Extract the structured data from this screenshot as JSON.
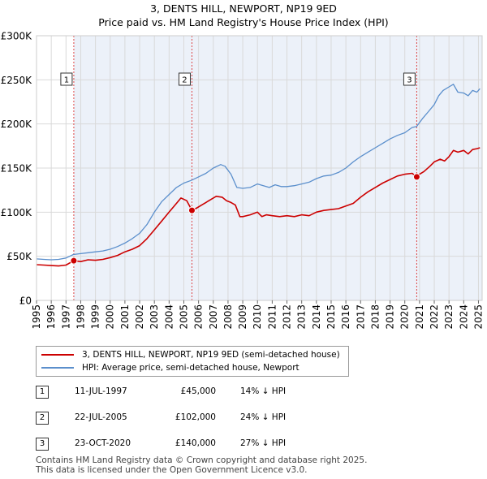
{
  "chart_data": {
    "type": "line",
    "title": "3, DENTS HILL, NEWPORT, NP19 9ED",
    "subtitle": "Price paid vs. HM Land Registry's House Price Index (HPI)",
    "xlabel": "",
    "ylabel": "",
    "xlim": [
      1995,
      2025.25
    ],
    "ylim": [
      0,
      300000
    ],
    "grid": true,
    "x_ticks": [
      "1995",
      "1996",
      "1997",
      "1998",
      "1999",
      "2000",
      "2001",
      "2002",
      "2003",
      "2004",
      "2005",
      "2006",
      "2007",
      "2008",
      "2009",
      "2010",
      "2011",
      "2012",
      "2013",
      "2014",
      "2015",
      "2016",
      "2017",
      "2018",
      "2019",
      "2020",
      "2021",
      "2022",
      "2023",
      "2024",
      "2025"
    ],
    "y_ticks": [
      {
        "value": 0,
        "label": "£0"
      },
      {
        "value": 50000,
        "label": "£50K"
      },
      {
        "value": 100000,
        "label": "£100K"
      },
      {
        "value": 150000,
        "label": "£150K"
      },
      {
        "value": 200000,
        "label": "£200K"
      },
      {
        "value": 250000,
        "label": "£250K"
      },
      {
        "value": 300000,
        "label": "£300K"
      }
    ],
    "series": [
      {
        "name": "3, DENTS HILL, NEWPORT, NP19 9ED (semi-detached house)",
        "color": "#cc0000",
        "x": [
          1995.0,
          1995.5,
          1996.0,
          1996.5,
          1997.0,
          1997.53,
          1998.0,
          1998.5,
          1999.0,
          1999.5,
          2000.0,
          2000.5,
          2001.0,
          2001.5,
          2002.0,
          2002.5,
          2003.0,
          2003.5,
          2004.0,
          2004.5,
          2004.8,
          2005.2,
          2005.55,
          2005.8,
          2006.3,
          2006.8,
          2007.2,
          2007.6,
          2007.9,
          2008.2,
          2008.5,
          2008.8,
          2009.0,
          2009.5,
          2010.0,
          2010.3,
          2010.6,
          2011.0,
          2011.5,
          2012.0,
          2012.5,
          2013.0,
          2013.5,
          2014.0,
          2014.5,
          2015.0,
          2015.5,
          2016.0,
          2016.5,
          2017.0,
          2017.5,
          2018.0,
          2018.5,
          2019.0,
          2019.5,
          2020.0,
          2020.5,
          2020.81,
          2021.0,
          2021.3,
          2021.7,
          2022.0,
          2022.4,
          2022.7,
          2023.0,
          2023.3,
          2023.6,
          2024.0,
          2024.3,
          2024.6,
          2024.9,
          2025.1
        ],
        "y": [
          40500,
          40000,
          39500,
          39000,
          40000,
          45000,
          44000,
          46000,
          45500,
          46500,
          48500,
          51000,
          55000,
          58000,
          62000,
          70000,
          80000,
          90000,
          100000,
          110000,
          116000,
          113000,
          102000,
          104000,
          109000,
          114000,
          118000,
          117000,
          113000,
          111000,
          108000,
          95000,
          95000,
          97000,
          100000,
          95000,
          97000,
          96000,
          95000,
          96000,
          95000,
          97000,
          96000,
          100000,
          102000,
          103000,
          104000,
          107000,
          110000,
          117000,
          123000,
          128000,
          133000,
          137000,
          141000,
          143000,
          144000,
          140000,
          143000,
          146000,
          152000,
          157000,
          160000,
          158000,
          163000,
          170000,
          168000,
          170000,
          166000,
          171000,
          172000,
          173000
        ]
      },
      {
        "name": "HPI: Average price, semi-detached house, Newport",
        "color": "#5b8fcc",
        "x": [
          1995.0,
          1995.5,
          1996.0,
          1996.5,
          1997.0,
          1997.5,
          1998.0,
          1998.5,
          1999.0,
          1999.5,
          2000.0,
          2000.5,
          2001.0,
          2001.5,
          2002.0,
          2002.5,
          2003.0,
          2003.5,
          2004.0,
          2004.5,
          2005.0,
          2005.5,
          2006.0,
          2006.5,
          2007.0,
          2007.5,
          2007.8,
          2008.2,
          2008.6,
          2009.0,
          2009.5,
          2010.0,
          2010.4,
          2010.8,
          2011.2,
          2011.6,
          2012.0,
          2012.5,
          2013.0,
          2013.5,
          2014.0,
          2014.5,
          2015.0,
          2015.5,
          2016.0,
          2016.5,
          2017.0,
          2017.5,
          2018.0,
          2018.5,
          2019.0,
          2019.5,
          2020.0,
          2020.5,
          2020.8,
          2021.2,
          2021.6,
          2022.0,
          2022.3,
          2022.6,
          2023.0,
          2023.3,
          2023.6,
          2024.0,
          2024.3,
          2024.6,
          2024.9,
          2025.1
        ],
        "y": [
          47000,
          46500,
          46000,
          46500,
          48000,
          52000,
          53000,
          54000,
          55000,
          56000,
          58000,
          61000,
          65000,
          70000,
          76000,
          86000,
          100000,
          112000,
          120000,
          128000,
          133000,
          136000,
          140000,
          144000,
          150000,
          154000,
          152000,
          143000,
          128000,
          127000,
          128000,
          132000,
          130000,
          128000,
          131000,
          129000,
          129000,
          130000,
          132000,
          134000,
          138000,
          141000,
          142000,
          145000,
          150000,
          157000,
          163000,
          168000,
          173000,
          178000,
          183000,
          187000,
          190000,
          196000,
          197000,
          206000,
          214000,
          222000,
          232000,
          238000,
          242000,
          245000,
          236000,
          235000,
          232000,
          238000,
          236000,
          240000
        ]
      }
    ],
    "transactions": [
      {
        "num": "1",
        "x": 1997.53,
        "y": 45000,
        "date": "11-JUL-1997",
        "price": "£45,000",
        "hpi": "14% ↓ HPI"
      },
      {
        "num": "2",
        "x": 2005.55,
        "y": 102000,
        "date": "22-JUL-2005",
        "price": "£102,000",
        "hpi": "24% ↓ HPI"
      },
      {
        "num": "3",
        "x": 2020.81,
        "y": 140000,
        "date": "23-OCT-2020",
        "price": "£140,000",
        "hpi": "27% ↓ HPI"
      }
    ],
    "legend_position": "bottom-left"
  },
  "footer": {
    "line1": "Contains HM Land Registry data © Crown copyright and database right 2025.",
    "line2": "This data is licensed under the Open Government Licence v3.0."
  }
}
